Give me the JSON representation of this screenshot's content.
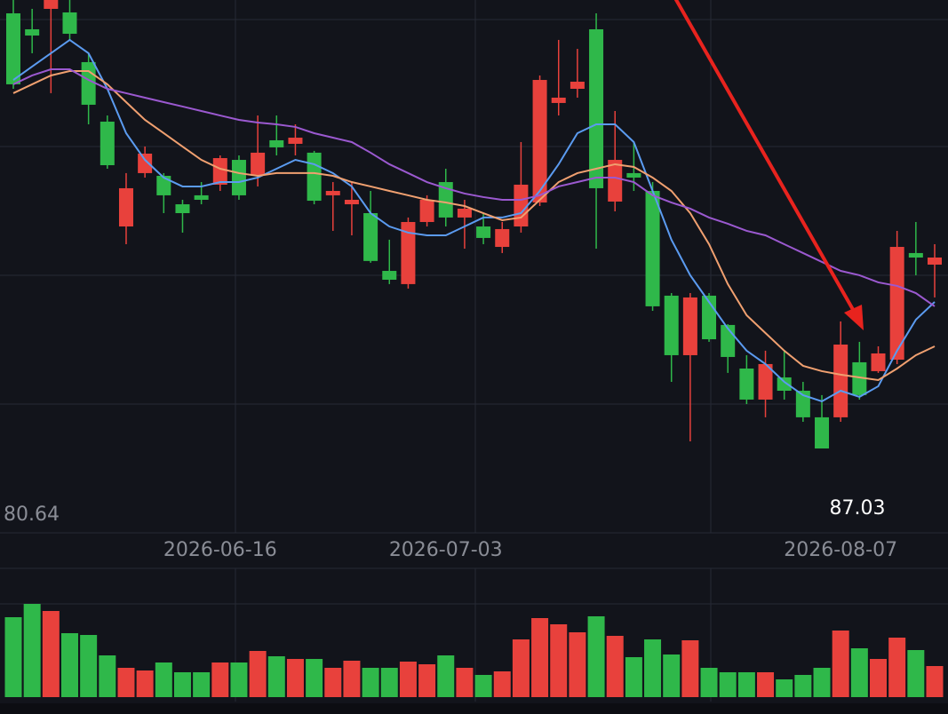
{
  "chart_data": {
    "type": "candlestick",
    "categories": [
      null,
      null,
      null,
      null,
      null,
      null,
      null,
      null,
      null,
      null,
      null,
      "2026-06-16",
      null,
      null,
      null,
      null,
      null,
      null,
      null,
      null,
      null,
      null,
      null,
      "2026-07-03",
      null,
      null,
      null,
      null,
      null,
      null,
      null,
      null,
      null,
      null,
      null,
      null,
      null,
      null,
      null,
      null,
      null,
      null,
      null,
      null,
      "2026-08-07",
      null,
      null,
      null,
      null,
      null
    ],
    "open": [
      128.78,
      127.25,
      129.21,
      128.87,
      124.1,
      118.39,
      108.33,
      113.45,
      113.19,
      110.46,
      111.32,
      112.34,
      114.72,
      113.28,
      116.6,
      116.26,
      115.41,
      111.32,
      110.46,
      109.61,
      104.07,
      102.8,
      108.76,
      112.59,
      109.19,
      108.33,
      106.37,
      108.33,
      110.63,
      120.18,
      121.54,
      127.25,
      110.72,
      113.45,
      111.74,
      101.69,
      95.98,
      101.69,
      98.88,
      94.7,
      91.72,
      93.85,
      92.57,
      90.02,
      90.02,
      95.3,
      94.45,
      95.55,
      105.78,
      104.67
    ],
    "high": [
      130.06,
      129.21,
      130.06,
      130.06,
      124.95,
      118.98,
      113.45,
      116.0,
      113.45,
      110.89,
      112.59,
      115.15,
      115.15,
      118.98,
      118.98,
      118.13,
      115.58,
      112.59,
      112.59,
      111.74,
      107.06,
      109.19,
      111.32,
      113.87,
      110.89,
      109.61,
      108.76,
      116.43,
      122.82,
      126.23,
      125.37,
      128.78,
      119.41,
      116.43,
      112.59,
      101.94,
      101.94,
      101.94,
      98.96,
      95.98,
      96.41,
      96.41,
      93.42,
      92.15,
      99.22,
      97.26,
      96.83,
      107.91,
      108.76,
      106.63
    ],
    "low": [
      121.54,
      124.95,
      121.12,
      126.23,
      118.13,
      113.87,
      106.63,
      113.02,
      109.61,
      107.74,
      110.46,
      111.74,
      110.89,
      112.17,
      115.15,
      115.15,
      110.46,
      107.91,
      107.48,
      104.85,
      102.8,
      102.37,
      108.33,
      108.33,
      106.2,
      106.63,
      105.78,
      107.74,
      110.29,
      118.98,
      120.69,
      106.2,
      109.78,
      111.74,
      100.24,
      93.42,
      87.71,
      97.26,
      94.28,
      91.29,
      90.02,
      91.72,
      89.59,
      87.03,
      89.59,
      91.72,
      94.28,
      95.13,
      103.65,
      101.52
    ],
    "close": [
      121.97,
      126.65,
      130.06,
      126.82,
      120.01,
      114.21,
      112.0,
      115.32,
      111.32,
      109.61,
      110.89,
      114.89,
      111.32,
      115.41,
      115.92,
      116.85,
      110.8,
      111.74,
      110.89,
      105.02,
      103.22,
      108.76,
      110.89,
      109.19,
      110.04,
      107.23,
      108.08,
      112.34,
      122.39,
      120.69,
      122.22,
      112.0,
      114.72,
      113.02,
      100.67,
      95.98,
      101.52,
      97.51,
      95.81,
      91.72,
      95.13,
      92.57,
      90.02,
      87.03,
      97.0,
      92.15,
      96.15,
      106.37,
      105.35,
      105.35
    ],
    "volume": [
      90,
      105,
      97,
      72,
      70,
      47,
      33,
      30,
      39,
      28,
      28,
      39,
      39,
      52,
      46,
      43,
      43,
      33,
      41,
      33,
      33,
      40,
      37,
      47,
      33,
      25,
      29,
      65,
      89,
      82,
      73,
      91,
      69,
      45,
      65,
      48,
      64,
      33,
      28,
      28,
      28,
      20,
      25,
      33,
      75,
      55,
      43,
      67,
      53,
      35
    ],
    "ma": [
      {
        "color": "#5b9bf0",
        "values": [
          122.39,
          123.67,
          124.95,
          126.23,
          124.95,
          121.54,
          117.28,
          114.72,
          113.02,
          112.17,
          112.17,
          112.59,
          112.59,
          113.02,
          113.87,
          114.72,
          114.3,
          113.45,
          112.17,
          109.61,
          108.33,
          107.74,
          107.48,
          107.48,
          108.33,
          109.19,
          109.19,
          109.61,
          111.74,
          114.3,
          117.28,
          118.13,
          118.13,
          116.43,
          111.74,
          107.06,
          103.65,
          101.09,
          98.54,
          96.41,
          95.13,
          93.42,
          92.15,
          91.55,
          92.57,
          91.98,
          93.0,
          96.41,
          99.39,
          101.09
        ]
      },
      {
        "color": "#f0a070",
        "values": [
          121.12,
          121.97,
          122.82,
          123.24,
          123.24,
          121.97,
          120.26,
          118.56,
          117.28,
          116.0,
          114.72,
          113.87,
          113.45,
          113.19,
          113.45,
          113.45,
          113.45,
          113.19,
          112.59,
          112.17,
          111.74,
          111.32,
          110.89,
          110.63,
          110.29,
          109.61,
          108.93,
          109.19,
          110.89,
          112.59,
          113.45,
          113.87,
          114.3,
          114.04,
          113.02,
          111.74,
          109.61,
          106.63,
          102.8,
          99.81,
          98.11,
          96.41,
          94.96,
          94.45,
          94.11,
          93.85,
          93.59,
          94.7,
          95.98,
          96.83
        ]
      },
      {
        "color": "#9b59d0",
        "values": [
          121.97,
          122.82,
          123.41,
          123.41,
          122.39,
          121.54,
          121.12,
          120.69,
          120.26,
          119.84,
          119.41,
          118.98,
          118.56,
          118.3,
          118.13,
          117.88,
          117.28,
          116.85,
          116.43,
          115.41,
          114.3,
          113.45,
          112.59,
          112.0,
          111.49,
          111.15,
          110.89,
          110.89,
          111.32,
          112.17,
          112.59,
          113.02,
          113.02,
          112.59,
          111.32,
          110.63,
          110.04,
          109.19,
          108.59,
          107.91,
          107.48,
          106.63,
          105.78,
          104.93,
          104.07,
          103.65,
          102.97,
          102.63,
          101.94,
          100.67
        ]
      }
    ],
    "up_color": "#e8413c",
    "down_color": "#2fb84a",
    "ylim": [
      80.64,
      130.06
    ],
    "yticks": [
      80.64
    ],
    "volume_ylim": [
      0,
      110
    ]
  }
}
